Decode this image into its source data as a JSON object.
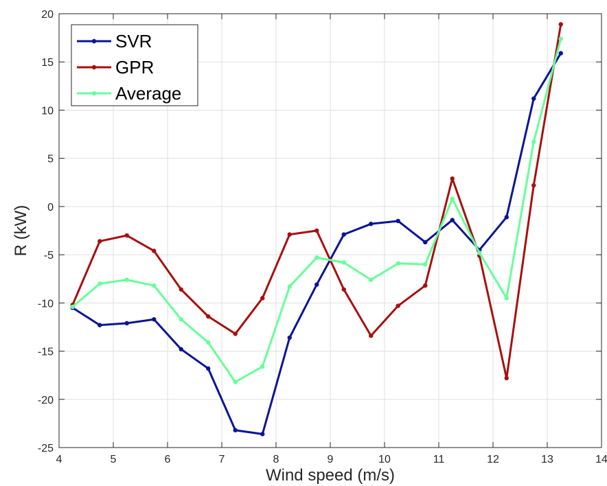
{
  "chart_data": {
    "type": "line",
    "xlabel": "Wind speed (m/s)",
    "ylabel": "R (kW)",
    "xlim": [
      4,
      14
    ],
    "ylim": [
      -25,
      20
    ],
    "x_ticks": [
      4,
      5,
      6,
      7,
      8,
      9,
      10,
      11,
      12,
      13,
      14
    ],
    "y_ticks": [
      -25,
      -20,
      -15,
      -10,
      -5,
      0,
      5,
      10,
      15,
      20
    ],
    "grid": true,
    "legend_position": "top-left",
    "x": [
      4.25,
      4.75,
      5.25,
      5.75,
      6.25,
      6.75,
      7.25,
      7.75,
      8.25,
      8.75,
      9.25,
      9.75,
      10.25,
      10.75,
      11.25,
      11.75,
      12.25,
      12.75,
      13.25
    ],
    "series": [
      {
        "name": "SVR",
        "color": "#0a1496",
        "values": [
          -10.5,
          -12.3,
          -12.1,
          -11.7,
          -14.8,
          -16.8,
          -23.2,
          -23.6,
          -13.6,
          -8.1,
          -2.9,
          -1.8,
          -1.5,
          -3.7,
          -1.4,
          -4.5,
          -1.1,
          11.2,
          15.9
        ]
      },
      {
        "name": "GPR",
        "color": "#a80f0f",
        "values": [
          -10.2,
          -3.6,
          -3.0,
          -4.6,
          -8.6,
          -11.4,
          -13.2,
          -9.5,
          -2.9,
          -2.5,
          -8.6,
          -13.4,
          -10.3,
          -8.2,
          2.9,
          -5.1,
          -17.8,
          2.2,
          18.9
        ]
      },
      {
        "name": "Average",
        "color": "#66ff99",
        "values": [
          -10.4,
          -8.0,
          -7.6,
          -8.2,
          -11.7,
          -14.1,
          -18.2,
          -16.6,
          -8.3,
          -5.3,
          -5.8,
          -7.6,
          -5.9,
          -6.0,
          0.8,
          -4.8,
          -9.5,
          6.7,
          17.4
        ]
      }
    ]
  }
}
